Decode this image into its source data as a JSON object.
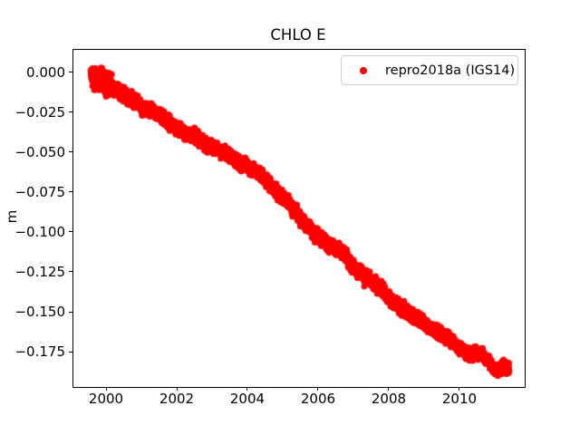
{
  "title": "CHLO E",
  "legend": {
    "label": "repro2018a (IGS14)",
    "marker_color": "#ff0000"
  },
  "colors": {
    "series": "#ff0000",
    "axis": "#000000",
    "text": "#000000",
    "legend_border": "#cccccc",
    "background": "#ffffff"
  },
  "chart_data": {
    "type": "scatter",
    "title": "CHLO E",
    "xlabel": "",
    "ylabel": "m",
    "legend_position": "upper right",
    "grid": false,
    "xlim": [
      1999.051,
      2011.821
    ],
    "ylim": [
      -0.19659,
      0.01477
    ],
    "xticks": [
      {
        "value": 2000,
        "label": "2000"
      },
      {
        "value": 2002,
        "label": "2002"
      },
      {
        "value": 2004,
        "label": "2004"
      },
      {
        "value": 2006,
        "label": "2006"
      },
      {
        "value": 2008,
        "label": "2008"
      },
      {
        "value": 2010,
        "label": "2010"
      }
    ],
    "yticks": [
      {
        "value": 0.0,
        "label": "0.000"
      },
      {
        "value": -0.025,
        "label": "−0.025"
      },
      {
        "value": -0.05,
        "label": "−0.050"
      },
      {
        "value": -0.075,
        "label": "−0.075"
      },
      {
        "value": -0.1,
        "label": "−0.100"
      },
      {
        "value": -0.125,
        "label": "−0.125"
      },
      {
        "value": -0.15,
        "label": "−0.150"
      },
      {
        "value": -0.175,
        "label": "−0.175"
      }
    ],
    "series": [
      {
        "name": "repro2018a (IGS14)",
        "color": "#ff0000",
        "marker": "dot",
        "marker_radius_px": 3.4,
        "x_start": 1999.55,
        "x_end": 2011.38,
        "points_per_year": 450,
        "scatter_halfwidth": 0.0018,
        "start_scatter_halfwidth": 0.0032,
        "gaps": [
          [
            2010.44,
            2010.5
          ],
          [
            2011.08,
            2011.13
          ]
        ],
        "trend_anchors": [
          [
            1999.55,
            0.0
          ],
          [
            1999.65,
            -0.003
          ],
          [
            1999.75,
            -0.005
          ],
          [
            1999.85,
            -0.004
          ],
          [
            1999.95,
            -0.0065
          ],
          [
            2000.05,
            -0.006
          ],
          [
            2000.2,
            -0.009
          ],
          [
            2000.35,
            -0.0115
          ],
          [
            2000.5,
            -0.014
          ],
          [
            2000.65,
            -0.016
          ],
          [
            2000.8,
            -0.017
          ],
          [
            2000.95,
            -0.02
          ],
          [
            2001.1,
            -0.0235
          ],
          [
            2001.25,
            -0.023
          ],
          [
            2001.4,
            -0.0255
          ],
          [
            2001.55,
            -0.027
          ],
          [
            2001.7,
            -0.03
          ],
          [
            2001.85,
            -0.032
          ],
          [
            2002.0,
            -0.0345
          ],
          [
            2002.15,
            -0.037
          ],
          [
            2002.3,
            -0.038
          ],
          [
            2002.45,
            -0.0385
          ],
          [
            2002.6,
            -0.041
          ],
          [
            2002.75,
            -0.044
          ],
          [
            2002.9,
            -0.046
          ],
          [
            2003.05,
            -0.047
          ],
          [
            2003.2,
            -0.048
          ],
          [
            2003.35,
            -0.05
          ],
          [
            2003.5,
            -0.0525
          ],
          [
            2003.65,
            -0.0545
          ],
          [
            2003.8,
            -0.0565
          ],
          [
            2003.95,
            -0.0585
          ],
          [
            2004.1,
            -0.06
          ],
          [
            2004.25,
            -0.0615
          ],
          [
            2004.4,
            -0.064
          ],
          [
            2004.55,
            -0.0675
          ],
          [
            2004.7,
            -0.0715
          ],
          [
            2004.85,
            -0.075
          ],
          [
            2005.0,
            -0.0785
          ],
          [
            2005.15,
            -0.082
          ],
          [
            2005.3,
            -0.086
          ],
          [
            2005.45,
            -0.09
          ],
          [
            2005.6,
            -0.094
          ],
          [
            2005.75,
            -0.0975
          ],
          [
            2005.9,
            -0.101
          ],
          [
            2006.05,
            -0.1035
          ],
          [
            2006.2,
            -0.106
          ],
          [
            2006.35,
            -0.108
          ],
          [
            2006.5,
            -0.11
          ],
          [
            2006.65,
            -0.112
          ],
          [
            2006.8,
            -0.116
          ],
          [
            2006.95,
            -0.121
          ],
          [
            2007.1,
            -0.124
          ],
          [
            2007.25,
            -0.126
          ],
          [
            2007.4,
            -0.128
          ],
          [
            2007.55,
            -0.132
          ],
          [
            2007.7,
            -0.134
          ],
          [
            2007.85,
            -0.137
          ],
          [
            2008.0,
            -0.1415
          ],
          [
            2008.15,
            -0.144
          ],
          [
            2008.3,
            -0.1465
          ],
          [
            2008.45,
            -0.149
          ],
          [
            2008.6,
            -0.151
          ],
          [
            2008.75,
            -0.153
          ],
          [
            2008.9,
            -0.1555
          ],
          [
            2009.05,
            -0.158
          ],
          [
            2009.2,
            -0.16
          ],
          [
            2009.35,
            -0.162
          ],
          [
            2009.5,
            -0.164
          ],
          [
            2009.65,
            -0.166
          ],
          [
            2009.8,
            -0.168
          ],
          [
            2009.95,
            -0.1715
          ],
          [
            2010.1,
            -0.174
          ],
          [
            2010.25,
            -0.176
          ],
          [
            2010.4,
            -0.175
          ],
          [
            2010.55,
            -0.175
          ],
          [
            2010.7,
            -0.178
          ],
          [
            2010.85,
            -0.182
          ],
          [
            2010.95,
            -0.1855
          ],
          [
            2011.05,
            -0.187
          ],
          [
            2011.15,
            -0.1835
          ],
          [
            2011.25,
            -0.1845
          ],
          [
            2011.38,
            -0.1855
          ]
        ],
        "outliers": [
          [
            2007.28,
            -0.1335
          ]
        ]
      }
    ]
  }
}
